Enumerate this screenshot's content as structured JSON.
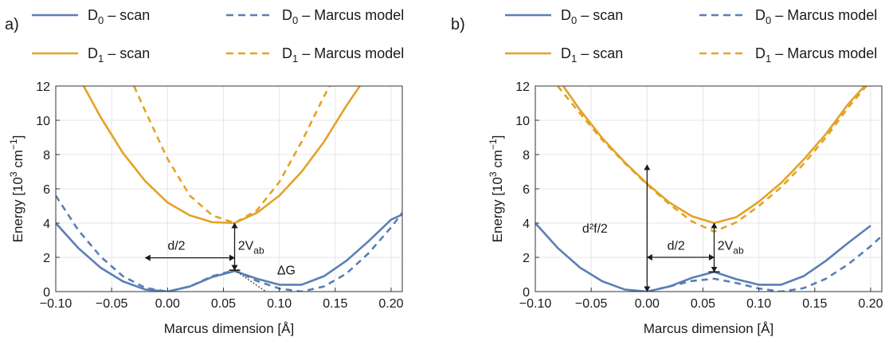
{
  "figure": {
    "legend": [
      {
        "key": "d0_scan",
        "base": "D",
        "sub": "0",
        "rest": " – scan",
        "dash": false,
        "color": "#5a7fb5"
      },
      {
        "key": "d0_marcus",
        "base": "D",
        "sub": "0",
        "rest": " – Marcus model",
        "dash": true,
        "color": "#5a7fb5"
      },
      {
        "key": "d1_scan",
        "base": "D",
        "sub": "1",
        "rest": " – scan",
        "dash": false,
        "color": "#e3a327"
      },
      {
        "key": "d1_marcus",
        "base": "D",
        "sub": "1",
        "rest": " – Marcus model",
        "dash": true,
        "color": "#e3a327"
      }
    ]
  },
  "chart_data": [
    {
      "type": "line",
      "panel_label": "a)",
      "xlabel": "Marcus dimension [Å]",
      "ylabel_parts": {
        "pre": "Energy [10",
        "sup1": "3",
        "mid": " cm",
        "sup2": "−1",
        "post": "]"
      },
      "xlim": [
        -0.1,
        0.21
      ],
      "ylim": [
        0,
        12
      ],
      "xticks": [
        -0.1,
        -0.05,
        0.0,
        0.05,
        0.1,
        0.15,
        0.2
      ],
      "xtick_labels": [
        "−0.10",
        "−0.05",
        "0.00",
        "0.05",
        "0.10",
        "0.15",
        "0.20"
      ],
      "yticks": [
        0,
        2,
        4,
        6,
        8,
        10,
        12
      ],
      "ytick_labels": [
        "0",
        "2",
        "4",
        "6",
        "8",
        "10",
        "12"
      ],
      "grid": true,
      "series": [
        {
          "key": "d0_scan",
          "color": "#5a7fb5",
          "dash": false,
          "x": [
            -0.1,
            -0.08,
            -0.06,
            -0.04,
            -0.02,
            0.0,
            0.02,
            0.04,
            0.06,
            0.08,
            0.1,
            0.12,
            0.14,
            0.16,
            0.18,
            0.2,
            0.21
          ],
          "y": [
            4.0,
            2.55,
            1.4,
            0.6,
            0.12,
            0.0,
            0.3,
            0.85,
            1.2,
            0.75,
            0.4,
            0.4,
            0.9,
            1.8,
            2.95,
            4.2,
            4.5
          ]
        },
        {
          "key": "d0_marcus",
          "color": "#5a7fb5",
          "dash": true,
          "x": [
            -0.1,
            -0.08,
            -0.06,
            -0.04,
            -0.02,
            0.0,
            0.02,
            0.04,
            0.06,
            0.08,
            0.1,
            0.12,
            0.14,
            0.16,
            0.18,
            0.2,
            0.21
          ],
          "y": [
            5.6,
            3.6,
            2.05,
            0.9,
            0.22,
            0.0,
            0.3,
            0.9,
            1.25,
            0.62,
            0.18,
            0.0,
            0.3,
            1.05,
            2.25,
            3.75,
            4.6
          ]
        },
        {
          "key": "d1_scan",
          "color": "#e3a327",
          "dash": false,
          "x": [
            -0.075,
            -0.06,
            -0.04,
            -0.02,
            0.0,
            0.02,
            0.04,
            0.06,
            0.08,
            0.1,
            0.12,
            0.14,
            0.16,
            0.172
          ],
          "y": [
            12.0,
            10.2,
            8.1,
            6.45,
            5.2,
            4.45,
            4.05,
            4.0,
            4.6,
            5.6,
            7.0,
            8.75,
            10.85,
            12.0
          ]
        },
        {
          "key": "d1_marcus",
          "color": "#e3a327",
          "dash": true,
          "x": [
            -0.03,
            -0.02,
            0.0,
            0.02,
            0.04,
            0.06,
            0.08,
            0.1,
            0.12,
            0.14,
            0.145
          ],
          "y": [
            12.0,
            10.55,
            7.75,
            5.6,
            4.45,
            4.0,
            4.75,
            6.4,
            8.75,
            11.4,
            12.0
          ]
        }
      ],
      "annotations": [
        {
          "kind": "arrow",
          "x1": -0.02,
          "y1": 1.97,
          "x2": 0.06,
          "y2": 1.97
        },
        {
          "kind": "arrow",
          "x1": 0.06,
          "y1": 1.25,
          "x2": 0.06,
          "y2": 4.0
        },
        {
          "kind": "tick",
          "x": 0.06,
          "y": 1.25
        },
        {
          "kind": "dotted",
          "x1": 0.06,
          "y1": 1.25,
          "x2": 0.088,
          "y2": 0.0
        },
        {
          "kind": "text",
          "x": 0.0,
          "y": 2.45,
          "base": "d/2",
          "sub": ""
        },
        {
          "kind": "text",
          "x": 0.063,
          "y": 2.45,
          "base": "2V",
          "sub": "ab"
        },
        {
          "kind": "text",
          "x": 0.098,
          "y": 1.0,
          "base": "ΔG",
          "sub": ""
        }
      ]
    },
    {
      "type": "line",
      "panel_label": "b)",
      "xlabel": "Marcus dimension [Å]",
      "ylabel_parts": {
        "pre": "Energy [10",
        "sup1": "3",
        "mid": " cm",
        "sup2": "−1",
        "post": "]"
      },
      "xlim": [
        -0.1,
        0.21
      ],
      "ylim": [
        0,
        12
      ],
      "xticks": [
        -0.1,
        -0.05,
        0.0,
        0.05,
        0.1,
        0.15,
        0.2
      ],
      "xtick_labels": [
        "−0.10",
        "−0.05",
        "0.00",
        "0.05",
        "0.10",
        "0.15",
        "0.20"
      ],
      "yticks": [
        0,
        2,
        4,
        6,
        8,
        10,
        12
      ],
      "ytick_labels": [
        "0",
        "2",
        "4",
        "6",
        "8",
        "10",
        "12"
      ],
      "grid": true,
      "series": [
        {
          "key": "d0_scan",
          "color": "#5a7fb5",
          "dash": false,
          "x": [
            -0.1,
            -0.08,
            -0.06,
            -0.04,
            -0.02,
            0.0,
            0.02,
            0.04,
            0.06,
            0.08,
            0.1,
            0.12,
            0.14,
            0.16,
            0.18,
            0.2
          ],
          "y": [
            4.0,
            2.55,
            1.4,
            0.6,
            0.12,
            0.0,
            0.3,
            0.8,
            1.15,
            0.72,
            0.4,
            0.4,
            0.9,
            1.8,
            2.85,
            3.85
          ]
        },
        {
          "key": "d0_marcus",
          "color": "#5a7fb5",
          "dash": true,
          "x": [
            0.0,
            0.02,
            0.04,
            0.06,
            0.08,
            0.1,
            0.12,
            0.14,
            0.16,
            0.18,
            0.2,
            0.21
          ],
          "y": [
            0.0,
            0.3,
            0.62,
            0.75,
            0.5,
            0.18,
            0.0,
            0.2,
            0.75,
            1.6,
            2.65,
            3.25
          ]
        },
        {
          "key": "d1_scan",
          "color": "#e3a327",
          "dash": false,
          "x": [
            -0.075,
            -0.06,
            -0.04,
            -0.02,
            0.0,
            0.02,
            0.04,
            0.06,
            0.08,
            0.1,
            0.12,
            0.14,
            0.16,
            0.18,
            0.2,
            0.21
          ],
          "y": [
            12.0,
            10.6,
            8.95,
            7.55,
            6.3,
            5.2,
            4.4,
            4.0,
            4.35,
            5.25,
            6.35,
            7.7,
            9.2,
            10.95,
            12.4,
            13.2
          ]
        },
        {
          "key": "d1_marcus",
          "color": "#e3a327",
          "dash": true,
          "x": [
            -0.08,
            -0.06,
            -0.04,
            -0.02,
            0.0,
            0.02,
            0.04,
            0.06,
            0.08,
            0.1,
            0.12,
            0.14,
            0.16,
            0.18,
            0.2,
            0.21
          ],
          "y": [
            12.0,
            10.4,
            8.85,
            7.5,
            6.25,
            5.1,
            4.1,
            3.5,
            4.05,
            5.0,
            6.1,
            7.45,
            9.0,
            10.75,
            12.3,
            13.0
          ]
        }
      ],
      "annotations": [
        {
          "kind": "arrow",
          "x1": 0.0,
          "y1": 0.0,
          "x2": 0.0,
          "y2": 7.4
        },
        {
          "kind": "arrow",
          "x1": 0.0,
          "y1": 2.0,
          "x2": 0.06,
          "y2": 2.0
        },
        {
          "kind": "arrow",
          "x1": 0.06,
          "y1": 1.15,
          "x2": 0.06,
          "y2": 4.0
        },
        {
          "kind": "tick",
          "x": 0.06,
          "y": 1.15
        },
        {
          "kind": "text",
          "x": -0.058,
          "y": 3.45,
          "base": "d²f/2",
          "sub": ""
        },
        {
          "kind": "text",
          "x": 0.018,
          "y": 2.45,
          "base": "d/2",
          "sub": ""
        },
        {
          "kind": "text",
          "x": 0.063,
          "y": 2.45,
          "base": "2V",
          "sub": "ab"
        }
      ]
    }
  ]
}
